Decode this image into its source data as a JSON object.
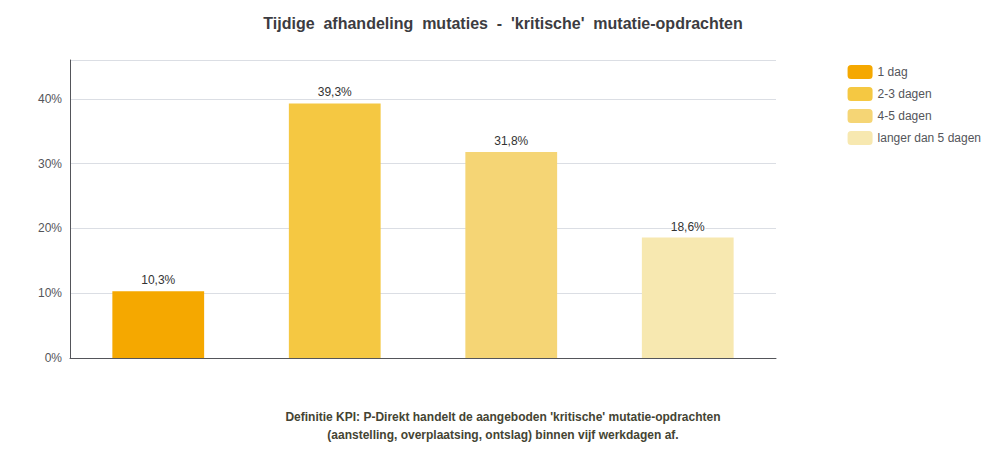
{
  "chart_data": {
    "type": "bar",
    "title": "Tijdige  afhandeling  mutaties  -  'kritische'  mutatie-opdrachten",
    "categories": [
      "1 dag",
      "2-3 dagen",
      "4-5 dagen",
      "langer dan 5 dagen"
    ],
    "values": [
      10.3,
      39.3,
      31.8,
      18.6
    ],
    "value_labels": [
      "10,3%",
      "39,3%",
      "31,8%",
      "18,6%"
    ],
    "colors": [
      "#F5A800",
      "#F5C842",
      "#F5D575",
      "#F7E8B0"
    ],
    "ylim": [
      0,
      46
    ],
    "yticks": [
      {
        "value": 0,
        "label": "0%"
      },
      {
        "value": 10,
        "label": "10%"
      },
      {
        "value": 20,
        "label": "20%"
      },
      {
        "value": 30,
        "label": "30%"
      },
      {
        "value": 40,
        "label": "40%"
      }
    ],
    "grid": true,
    "legend": "upper right",
    "data_labels": true,
    "tick_labels": "y",
    "annotations": [
      "Definitie KPI: P-Direkt handelt de aangeboden 'kritische' mutatie-opdrachten\n(aanstelling, overplaatsing, ontslag) binnen vijf werkdagen af."
    ]
  }
}
